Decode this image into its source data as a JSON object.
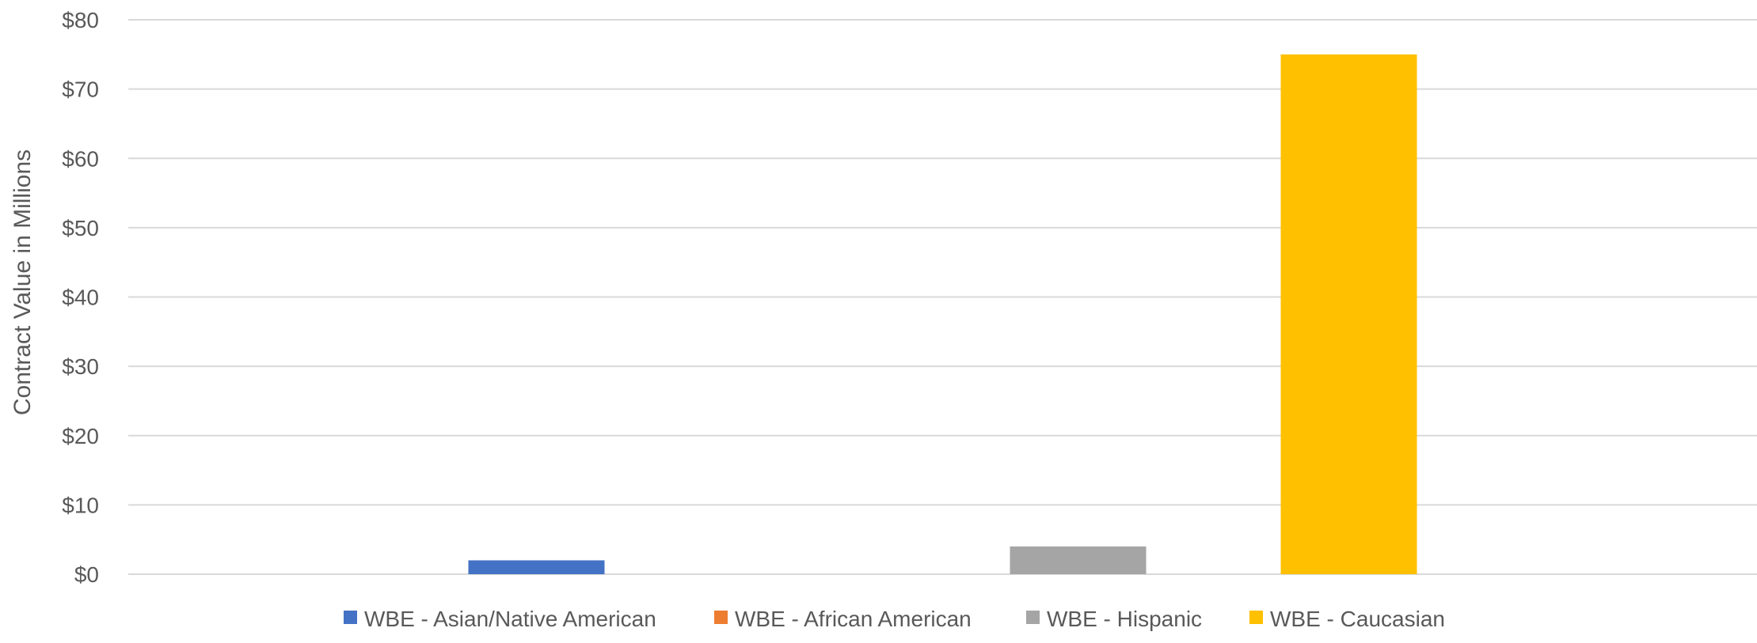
{
  "chart_data": {
    "type": "bar",
    "ylabel": "Contract Value in Millions",
    "ylim": [
      0,
      80
    ],
    "yticks": [
      0,
      10,
      20,
      30,
      40,
      50,
      60,
      70,
      80
    ],
    "ytick_labels": [
      "$0",
      "$10",
      "$20",
      "$30",
      "$40",
      "$50",
      "$60",
      "$70",
      "$80"
    ],
    "grid": true,
    "legend_position": "bottom",
    "series": [
      {
        "name": "WBE - Asian/Native American",
        "color": "#4472C4",
        "values": [
          2
        ]
      },
      {
        "name": "WBE - African American",
        "color": "#ED7D31",
        "values": [
          0
        ]
      },
      {
        "name": "WBE - Hispanic",
        "color": "#A5A5A5",
        "values": [
          4
        ]
      },
      {
        "name": "WBE - Caucasian",
        "color": "#FFC000",
        "values": [
          75
        ]
      }
    ]
  }
}
